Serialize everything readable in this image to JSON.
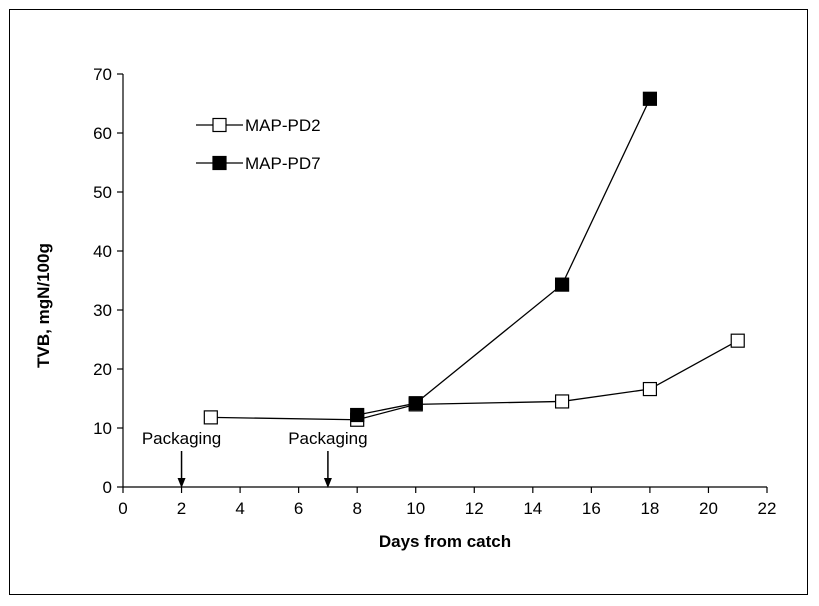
{
  "chart_data": {
    "type": "line",
    "title": "",
    "xlabel": "Days from catch",
    "ylabel": "TVB, mgN/100g",
    "xlim": [
      0,
      22
    ],
    "ylim": [
      0,
      70
    ],
    "xticks": [
      0,
      2,
      4,
      6,
      8,
      10,
      12,
      14,
      16,
      18,
      20,
      22
    ],
    "yticks": [
      0,
      10,
      20,
      30,
      40,
      50,
      60,
      70
    ],
    "grid": false,
    "legend_position": "top-left",
    "series": [
      {
        "name": "MAP-PD2",
        "marker": "open-square",
        "color": "#000000",
        "fill": "#ffffff",
        "x": [
          3,
          8,
          10,
          15,
          18,
          21
        ],
        "y": [
          11.8,
          11.4,
          14.0,
          14.5,
          16.6,
          24.8
        ]
      },
      {
        "name": "MAP-PD7",
        "marker": "filled-square",
        "color": "#000000",
        "fill": "#000000",
        "x": [
          8,
          10,
          15,
          18
        ],
        "y": [
          12.2,
          14.2,
          34.3,
          65.8
        ]
      }
    ],
    "annotations": [
      {
        "text": "Packaging",
        "x": 2,
        "arrow_to_y": 0
      },
      {
        "text": "Packaging",
        "x": 7,
        "arrow_to_y": 0
      }
    ]
  }
}
